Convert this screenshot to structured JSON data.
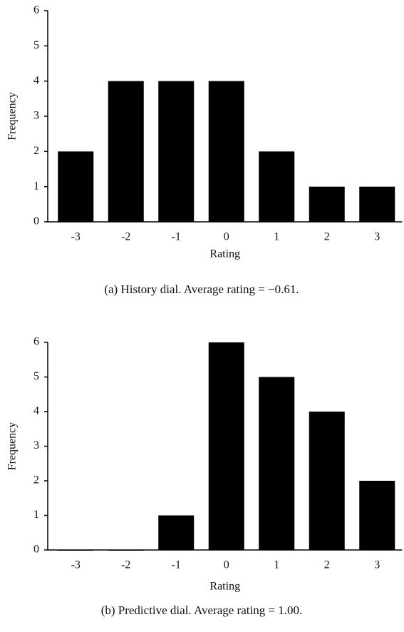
{
  "chart_data": [
    {
      "type": "bar",
      "caption": "(a)  History dial. Average rating = −0.61.",
      "xlabel": "Rating",
      "ylabel": "Frequency",
      "categories": [
        "-3",
        "-2",
        "-1",
        "0",
        "1",
        "2",
        "3"
      ],
      "values": [
        2,
        4,
        4,
        4,
        2,
        1,
        1
      ],
      "color": "#000000",
      "ylim": [
        0,
        6
      ],
      "yticks": [
        0,
        1,
        2,
        3,
        4,
        5,
        6
      ],
      "grid": false
    },
    {
      "type": "bar",
      "caption": "(b)  Predictive dial. Average rating = 1.00.",
      "xlabel": "Rating",
      "ylabel": "Frequency",
      "categories": [
        "-3",
        "-2",
        "-1",
        "0",
        "1",
        "2",
        "3"
      ],
      "values": [
        0,
        0,
        1,
        6,
        5,
        4,
        2
      ],
      "color": "#000000",
      "ylim": [
        0,
        6
      ],
      "yticks": [
        0,
        1,
        2,
        3,
        4,
        5,
        6
      ],
      "grid": false
    }
  ]
}
